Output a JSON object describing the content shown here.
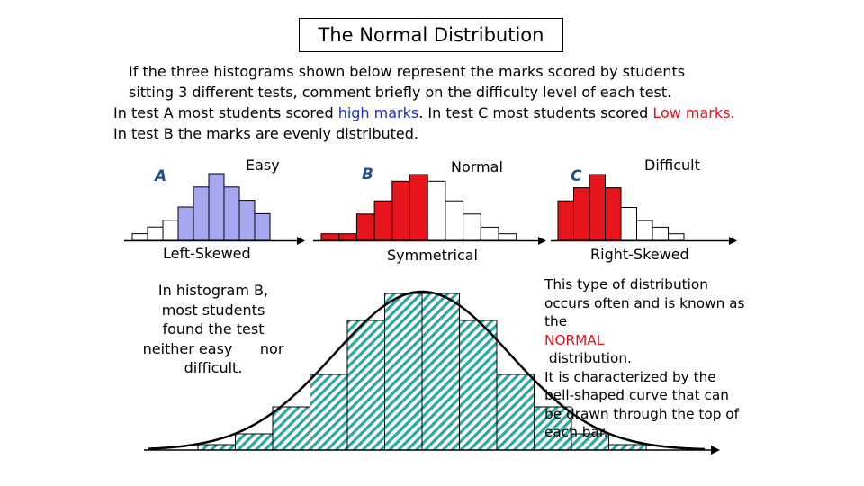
{
  "title": "The Normal Distribution",
  "intro": {
    "line1": "If the three histograms shown below represent the marks scored by students",
    "line2": "sitting 3 different tests, comment briefly on the difficulty level of each test.",
    "line3_a": "In test A most students scored ",
    "line3_b": "high marks",
    "line3_c": ".  In test C most students scored ",
    "line3_d": "Low marks.",
    "line4": "In test B the marks are evenly distributed."
  },
  "histograms": [
    {
      "letter": "A",
      "difficulty": "Easy",
      "shape": "Left-Skewed",
      "bars": [
        1,
        2,
        3,
        5,
        8,
        10,
        8,
        6,
        4
      ],
      "colored_from": 3,
      "color": "#a5a8f0"
    },
    {
      "letter": "B",
      "difficulty": "Normal",
      "shape": "Symmetrical",
      "bars": [
        1,
        1,
        4,
        6,
        9,
        10,
        9,
        6,
        4,
        2,
        1
      ],
      "colored_from": 0,
      "colored_to": 6,
      "color": "#e8141c"
    },
    {
      "letter": "C",
      "difficulty": "Difficult",
      "shape": "Right-Skewed",
      "bars": [
        6,
        8,
        10,
        8,
        5,
        3,
        2,
        1
      ],
      "colored_to": 4,
      "color": "#e8141c"
    }
  ],
  "side_note": [
    "In histogram B,",
    "most students",
    "found the test",
    "neither easy      nor",
    "difficult."
  ],
  "description": {
    "line1": "This type of distribution",
    "line2": "occurs often and is known as",
    "line3_a": "the ",
    "line3_b": "NORMAL",
    "line3_c": " distribution.",
    "line4": "It is characterized by the",
    "line5": "bell-shaped curve that can",
    "line6": "be drawn through the top of",
    "line7": "each bar."
  },
  "big_histogram": {
    "bars": [
      1,
      3,
      8,
      14,
      24,
      29,
      29,
      24,
      14,
      8,
      3,
      1
    ],
    "fill": "#2aa7a0"
  }
}
